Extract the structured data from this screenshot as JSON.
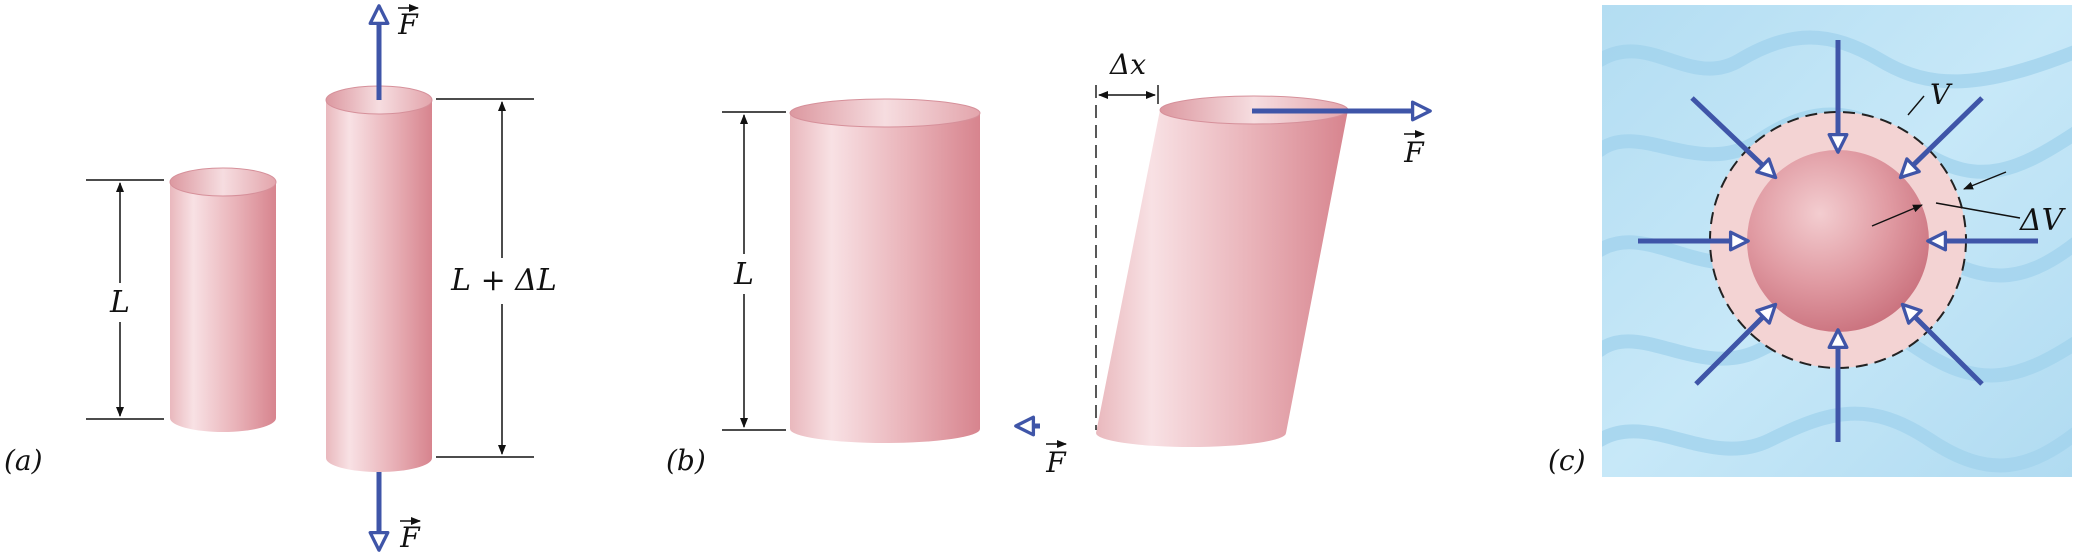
{
  "panels": {
    "a": {
      "label": "(a)",
      "length_label": "L",
      "stretched_label": "L + ΔL",
      "force_top": "F",
      "force_bottom": "F"
    },
    "b": {
      "label": "(b)",
      "length_label": "L",
      "shift_label": "Δx",
      "force_top": "F",
      "force_bottom": "F"
    },
    "c": {
      "label": "(c)",
      "volume_label": "V",
      "delta_volume_label": "ΔV"
    }
  },
  "colors": {
    "cylinder_light": "#f6dadd",
    "cylinder_dark": "#d98a93",
    "arrow": "#3f55a8",
    "water_light": "#bfe4f6",
    "water_dark": "#a8d8f0",
    "shell": "#f3d3d3"
  }
}
